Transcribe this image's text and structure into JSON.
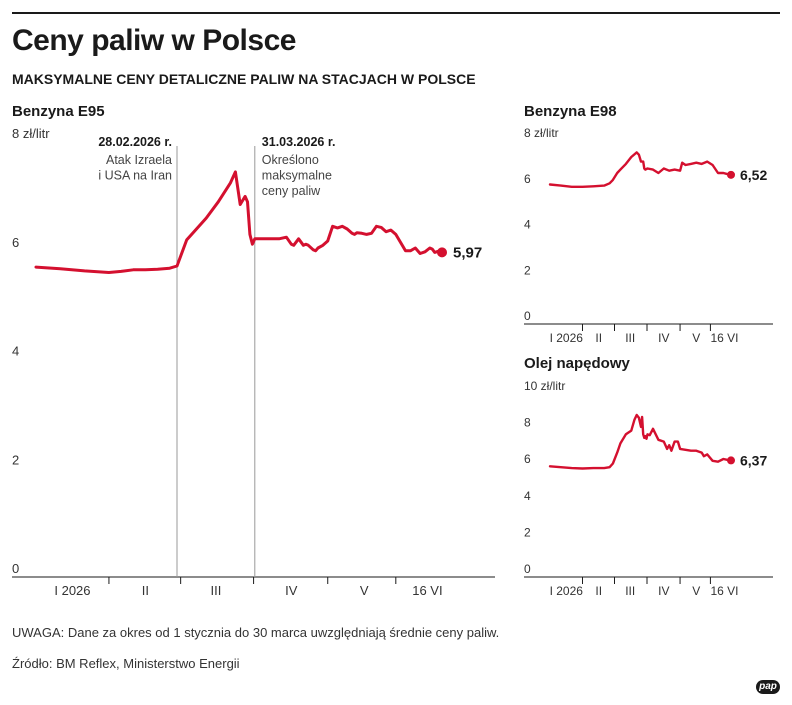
{
  "header": {
    "title": "Ceny paliw w Polsce",
    "subtitle": "MAKSYMALNE CENY DETALICZNE PALIW NA STACJACH W POLSCE"
  },
  "chart_data": [
    {
      "type": "line",
      "title": "Benzyna E95",
      "ylabel": "zł/litr",
      "ylim": [
        0,
        8
      ],
      "yticks": [
        "0",
        "2",
        "4",
        "6",
        "8 zł/litr"
      ],
      "xlim": [
        0,
        167
      ],
      "x_tick_labels": [
        {
          "label": "I 2026",
          "x": 15
        },
        {
          "label": "II",
          "x": 45
        },
        {
          "label": "III",
          "x": 74
        },
        {
          "label": "IV",
          "x": 105
        },
        {
          "label": "V",
          "x": 135
        },
        {
          "label": "16 VI",
          "x": 161
        }
      ],
      "annotations": [
        {
          "date": "28.02.2026 r.",
          "text": "Atak Izraela i USA na Iran",
          "x": 58
        },
        {
          "date": "31.03.2026 r.",
          "text": "Określono maksymalne ceny paliw",
          "x": 90
        }
      ],
      "end_label": "5,97",
      "series": [
        {
          "color": "#d4102f",
          "x": [
            0,
            10,
            20,
            30,
            35,
            40,
            45,
            50,
            55,
            58,
            62,
            65,
            70,
            75,
            80,
            82,
            84,
            86,
            87,
            88,
            89,
            90,
            92,
            95,
            100,
            103,
            105,
            106,
            108,
            110,
            111,
            112,
            114,
            115,
            116,
            118,
            120,
            122,
            124,
            126,
            128,
            130,
            131,
            132,
            134,
            136,
            138,
            140,
            142,
            144,
            146,
            148,
            150,
            152,
            154,
            156,
            158,
            160,
            162,
            163,
            164,
            166,
            167
          ],
          "y": [
            5.7,
            5.67,
            5.63,
            5.6,
            5.62,
            5.65,
            5.65,
            5.66,
            5.68,
            5.72,
            6.2,
            6.35,
            6.6,
            6.9,
            7.25,
            7.45,
            6.85,
            7.0,
            6.9,
            6.3,
            6.12,
            6.22,
            6.22,
            6.22,
            6.22,
            6.25,
            6.12,
            6.1,
            6.22,
            6.1,
            6.12,
            6.1,
            6.02,
            6.0,
            6.05,
            6.1,
            6.18,
            6.45,
            6.42,
            6.45,
            6.4,
            6.32,
            6.3,
            6.33,
            6.32,
            6.3,
            6.32,
            6.45,
            6.43,
            6.35,
            6.38,
            6.3,
            6.15,
            6.0,
            6.0,
            6.05,
            5.95,
            5.98,
            6.05,
            6.03,
            5.97,
            6.0,
            5.97
          ]
        }
      ]
    },
    {
      "type": "line",
      "title": "Benzyna E98",
      "ylabel": "zł/litr",
      "ylim": [
        0,
        8
      ],
      "yticks": [
        "0",
        "2",
        "4",
        "6",
        "8 zł/litr"
      ],
      "xlim": [
        0,
        167
      ],
      "x_tick_labels": [
        {
          "label": "I 2026",
          "x": 15
        },
        {
          "label": "II",
          "x": 45
        },
        {
          "label": "III",
          "x": 74
        },
        {
          "label": "IV",
          "x": 105
        },
        {
          "label": "V",
          "x": 135
        },
        {
          "label": "16 VI",
          "x": 161
        }
      ],
      "end_label": "6,52",
      "series": [
        {
          "color": "#d4102f",
          "x": [
            0,
            10,
            20,
            30,
            40,
            50,
            55,
            58,
            62,
            65,
            70,
            75,
            80,
            82,
            84,
            86,
            87,
            88,
            90,
            95,
            100,
            105,
            110,
            115,
            120,
            122,
            125,
            130,
            135,
            140,
            145,
            150,
            155,
            160,
            164,
            167
          ],
          "y": [
            6.1,
            6.05,
            6.0,
            6.0,
            6.02,
            6.05,
            6.15,
            6.3,
            6.6,
            6.75,
            7.0,
            7.3,
            7.5,
            7.4,
            7.1,
            7.1,
            6.8,
            6.75,
            6.8,
            6.75,
            6.6,
            6.8,
            6.7,
            6.75,
            6.7,
            7.05,
            6.95,
            7.0,
            7.05,
            7.0,
            7.1,
            6.95,
            6.6,
            6.6,
            6.55,
            6.52
          ]
        }
      ]
    },
    {
      "type": "line",
      "title": "Olej napędowy",
      "ylabel": "zł/litr",
      "ylim": [
        0,
        10
      ],
      "yticks": [
        "0",
        "2",
        "4",
        "6",
        "8",
        "10 zł/litr"
      ],
      "xlim": [
        0,
        167
      ],
      "x_tick_labels": [
        {
          "label": "I 2026",
          "x": 15
        },
        {
          "label": "II",
          "x": 45
        },
        {
          "label": "III",
          "x": 74
        },
        {
          "label": "IV",
          "x": 105
        },
        {
          "label": "V",
          "x": 135
        },
        {
          "label": "16 VI",
          "x": 161
        }
      ],
      "end_label": "6,37",
      "series": [
        {
          "color": "#d4102f",
          "x": [
            0,
            10,
            20,
            30,
            40,
            50,
            55,
            58,
            62,
            65,
            70,
            75,
            78,
            80,
            82,
            84,
            85,
            86,
            87,
            88,
            89,
            90,
            92,
            95,
            100,
            105,
            108,
            110,
            112,
            115,
            118,
            120,
            125,
            130,
            135,
            140,
            142,
            145,
            150,
            155,
            160,
            164,
            167
          ],
          "y": [
            6.05,
            6.0,
            5.95,
            5.93,
            5.95,
            5.95,
            6.0,
            6.2,
            6.8,
            7.3,
            7.8,
            8.0,
            8.6,
            8.85,
            8.7,
            8.2,
            8.75,
            7.8,
            7.6,
            7.7,
            7.55,
            7.8,
            7.75,
            8.1,
            7.5,
            7.4,
            7.0,
            7.2,
            6.9,
            7.4,
            7.4,
            7.0,
            6.95,
            6.9,
            6.9,
            6.8,
            6.6,
            6.7,
            6.35,
            6.3,
            6.45,
            6.4,
            6.37
          ]
        }
      ]
    }
  ],
  "footer": {
    "note": "UWAGA: Dane za okres od 1 stycznia do 30 marca uwzględniają średnie ceny paliw.",
    "source": "Źródło: BM Reflex, Ministerstwo Energii",
    "logo": "pap"
  }
}
